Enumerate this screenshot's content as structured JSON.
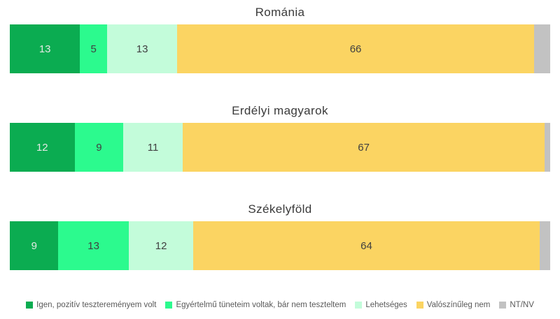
{
  "chart_data": {
    "type": "bar",
    "orientation": "horizontal-stacked",
    "title": "",
    "categories": [
      "Románia",
      "Erdélyi magyarok",
      "Székelyföld"
    ],
    "series": [
      {
        "name": "Igen, pozitív tesztereményem volt",
        "values": [
          13,
          12,
          9
        ],
        "color": "#0BAC51",
        "label_color": "#E3E9E4",
        "labeled": true
      },
      {
        "name": "Egyértelmű tüneteim voltak, bár nem teszteltem",
        "values": [
          5,
          9,
          13
        ],
        "color": "#2CFA8E",
        "label_color": "#404040",
        "labeled": true
      },
      {
        "name": "Lehetséges",
        "values": [
          13,
          11,
          12
        ],
        "color": "#C3FCDA",
        "label_color": "#404040",
        "labeled": true
      },
      {
        "name": "Valószínűleg nem",
        "values": [
          66,
          67,
          64
        ],
        "color": "#FBD462",
        "label_color": "#404040",
        "labeled": true
      },
      {
        "name": "NT/NV",
        "values": [
          3,
          1,
          2
        ],
        "color": "#C2C2C2",
        "label_color": "#404040",
        "labeled": false
      }
    ],
    "xlim": [
      0,
      100
    ],
    "grid": false,
    "legend_position": "bottom",
    "background_color": "#FFFFFF"
  }
}
